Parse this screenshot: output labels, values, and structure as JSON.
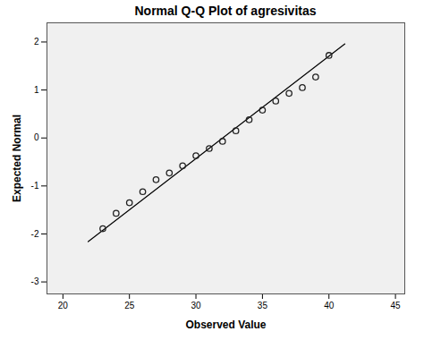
{
  "chart_data": {
    "type": "scatter",
    "title": "Normal Q-Q Plot of agresivitas",
    "x_label": "Observed Value",
    "y_label": "Expected Normal",
    "x": [
      23,
      24,
      25,
      26,
      27,
      28,
      29,
      30,
      31,
      32,
      33,
      34,
      35,
      36,
      37,
      38,
      39,
      40
    ],
    "values": [
      -1.89,
      -1.57,
      -1.35,
      -1.12,
      -0.87,
      -0.73,
      -0.58,
      -0.37,
      -0.22,
      -0.07,
      0.15,
      0.38,
      0.58,
      0.77,
      0.93,
      1.05,
      1.27,
      1.72
    ],
    "color": "#222222",
    "marker": "circle",
    "fit_line": {
      "x": [
        21.9,
        41.2
      ],
      "values": [
        -2.16,
        1.96
      ],
      "color": "#000000"
    },
    "xlim": [
      18.8,
      45.7
    ],
    "ylim": [
      -3.25,
      2.4
    ],
    "xticks": [
      20,
      25,
      30,
      35,
      40,
      45
    ],
    "yticks": [
      -3,
      -2,
      -1,
      0,
      1,
      2
    ]
  }
}
